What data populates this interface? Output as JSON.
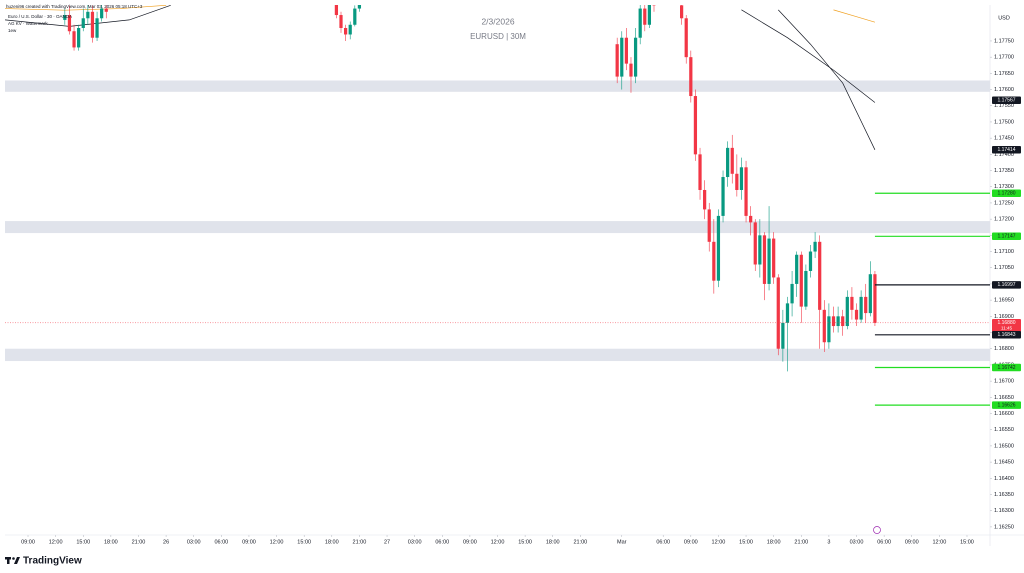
{
  "chart_data": {
    "type": "candlestick",
    "title": "EURUSD | 30M",
    "subtitle": "2/3/2026",
    "header": [
      "huzeni96 created with TradingView.com, Mar 03, 2026 05:18 UTC+3",
      "Euro / U.S. Dollar · 30 · OANDA",
      "AG KV · Watermark",
      "1ew"
    ],
    "currency": "USD",
    "brand": "TradingView",
    "up_color": "#089981",
    "down_color": "#f23645",
    "x": [
      8,
      9,
      10,
      11,
      12,
      13,
      14,
      15,
      16,
      17,
      67,
      68,
      69,
      70,
      71,
      72,
      128,
      129,
      130,
      131,
      132,
      133,
      134,
      135,
      136,
      142,
      143,
      144,
      145,
      146,
      147,
      148,
      149,
      150,
      151,
      152,
      153,
      154,
      155,
      156,
      157,
      158,
      159,
      160,
      161,
      162,
      163,
      164,
      165,
      166,
      167,
      168,
      169,
      170,
      171,
      172,
      173,
      174,
      175,
      176,
      177,
      178,
      179,
      180,
      181,
      182,
      183,
      184
    ],
    "open": [
      1.17815,
      1.1783,
      1.1778,
      1.1773,
      1.1779,
      1.1782,
      1.1784,
      1.1776,
      1.1782,
      1.1785,
      1.1788,
      1.1783,
      1.1779,
      1.1777,
      1.178,
      1.1785,
      1.1774,
      1.1764,
      1.1776,
      1.1768,
      1.1764,
      1.1776,
      1.1785,
      1.178,
      1.1788,
      1.1786,
      1.1782,
      1.177,
      1.1758,
      1.174,
      1.1729,
      1.1723,
      1.1713,
      1.1701,
      1.1721,
      1.1733,
      1.1742,
      1.1734,
      1.1729,
      1.1736,
      1.1721,
      1.1719,
      1.1706,
      1.1715,
      1.17,
      1.1714,
      1.1702,
      1.168,
      1.1688,
      1.1694,
      1.17,
      1.1709,
      1.1693,
      1.1704,
      1.171,
      1.1713,
      1.1692,
      1.1682,
      1.169,
      1.1687,
      1.169,
      1.1687,
      1.1696,
      1.1692,
      1.1689,
      1.1696,
      1.1691,
      1.1703
    ],
    "high": [
      1.1785,
      1.1786,
      1.178,
      1.178,
      1.1785,
      1.1787,
      1.1786,
      1.1784,
      1.1788,
      1.1788,
      1.1789,
      1.1784,
      1.178,
      1.1781,
      1.1786,
      1.17895,
      1.1776,
      1.1778,
      1.1779,
      1.177,
      1.1779,
      1.1787,
      1.1788,
      1.17895,
      1.179,
      1.1788,
      1.1783,
      1.1772,
      1.176,
      1.1742,
      1.1732,
      1.1725,
      1.172,
      1.1723,
      1.1735,
      1.1744,
      1.1746,
      1.174,
      1.1739,
      1.1738,
      1.1724,
      1.172,
      1.172,
      1.1716,
      1.1724,
      1.1716,
      1.1703,
      1.1692,
      1.1696,
      1.1704,
      1.171,
      1.171,
      1.1706,
      1.1712,
      1.1716,
      1.1715,
      1.1695,
      1.1694,
      1.1693,
      1.1693,
      1.1692,
      1.1698,
      1.1699,
      1.1694,
      1.1698,
      1.17,
      1.1707,
      1.1704
    ],
    "low": [
      1.178,
      1.1777,
      1.1772,
      1.1772,
      1.1778,
      1.178,
      1.17745,
      1.1775,
      1.1781,
      1.1782,
      1.1782,
      1.17775,
      1.1775,
      1.17755,
      1.17795,
      1.1784,
      1.1762,
      1.176,
      1.1766,
      1.1759,
      1.1762,
      1.1774,
      1.1778,
      1.1779,
      1.1784,
      1.178,
      1.1768,
      1.1756,
      1.1738,
      1.1726,
      1.172,
      1.171,
      1.1697,
      1.1699,
      1.1719,
      1.173,
      1.1731,
      1.1727,
      1.1726,
      1.1719,
      1.1715,
      1.1704,
      1.1702,
      1.1695,
      1.1698,
      1.17,
      1.1678,
      1.1676,
      1.1673,
      1.169,
      1.1696,
      1.1688,
      1.1692,
      1.1702,
      1.1708,
      1.168,
      1.1679,
      1.168,
      1.1685,
      1.1685,
      1.1684,
      1.1686,
      1.1689,
      1.1687,
      1.1688,
      1.1688,
      1.169,
      1.1687
    ],
    "close": [
      1.1783,
      1.1778,
      1.1773,
      1.1779,
      1.1782,
      1.1784,
      1.1776,
      1.1782,
      1.1785,
      1.1784,
      1.1783,
      1.1779,
      1.1777,
      1.178,
      1.1785,
      1.1788,
      1.1764,
      1.1776,
      1.1768,
      1.1764,
      1.1776,
      1.1785,
      1.178,
      1.1788,
      1.1786,
      1.1782,
      1.177,
      1.1758,
      1.174,
      1.1729,
      1.1723,
      1.1713,
      1.1701,
      1.1721,
      1.1733,
      1.1742,
      1.1734,
      1.1729,
      1.1736,
      1.1721,
      1.1719,
      1.1706,
      1.1715,
      1.17,
      1.1714,
      1.1702,
      1.168,
      1.1688,
      1.1694,
      1.17,
      1.1709,
      1.1693,
      1.1704,
      1.171,
      1.1713,
      1.1692,
      1.1682,
      1.169,
      1.1687,
      1.169,
      1.1687,
      1.1696,
      1.1692,
      1.1689,
      1.1696,
      1.1691,
      1.1703,
      1.1688
    ],
    "xlim": [
      -5,
      209
    ],
    "xticks": [
      {
        "value": 0,
        "label": "09:00"
      },
      {
        "value": 6,
        "label": "12:00"
      },
      {
        "value": 12,
        "label": "15:00"
      },
      {
        "value": 18,
        "label": "18:00"
      },
      {
        "value": 24,
        "label": "21:00"
      },
      {
        "value": 30,
        "label": "26"
      },
      {
        "value": 36,
        "label": "03:00"
      },
      {
        "value": 42,
        "label": "06:00"
      },
      {
        "value": 48,
        "label": "09:00"
      },
      {
        "value": 54,
        "label": "12:00"
      },
      {
        "value": 60,
        "label": "15:00"
      },
      {
        "value": 66,
        "label": "18:00"
      },
      {
        "value": 72,
        "label": "21:00"
      },
      {
        "value": 78,
        "label": "27"
      },
      {
        "value": 84,
        "label": "03:00"
      },
      {
        "value": 90,
        "label": "06:00"
      },
      {
        "value": 96,
        "label": "09:00"
      },
      {
        "value": 102,
        "label": "12:00"
      },
      {
        "value": 108,
        "label": "15:00"
      },
      {
        "value": 114,
        "label": "18:00"
      },
      {
        "value": 120,
        "label": "21:00"
      },
      {
        "value": 129,
        "label": "Mar"
      },
      {
        "value": 138,
        "label": "06:00"
      },
      {
        "value": 144,
        "label": "09:00"
      },
      {
        "value": 150,
        "label": "12:00"
      },
      {
        "value": 156,
        "label": "15:00"
      },
      {
        "value": 162,
        "label": "18:00"
      },
      {
        "value": 168,
        "label": "21:00"
      },
      {
        "value": 174,
        "label": "3"
      },
      {
        "value": 180,
        "label": "03:00"
      },
      {
        "value": 186,
        "label": "06:00"
      },
      {
        "value": 192,
        "label": "09:00"
      },
      {
        "value": 198,
        "label": "12:00"
      },
      {
        "value": 204,
        "label": "15:00"
      }
    ],
    "ylim": [
      1.16225,
      1.17861
    ],
    "yticks": [
      {
        "value": 1.1625,
        "label": "1.16250"
      },
      {
        "value": 1.163,
        "label": "1.16300"
      },
      {
        "value": 1.1635,
        "label": "1.16350"
      },
      {
        "value": 1.164,
        "label": "1.16400"
      },
      {
        "value": 1.1645,
        "label": "1.16450"
      },
      {
        "value": 1.165,
        "label": "1.16500"
      },
      {
        "value": 1.1655,
        "label": "1.16550"
      },
      {
        "value": 1.166,
        "label": "1.16600"
      },
      {
        "value": 1.1665,
        "label": "1.16650"
      },
      {
        "value": 1.167,
        "label": "1.16700"
      },
      {
        "value": 1.1675,
        "label": "1.16750"
      },
      {
        "value": 1.168,
        "label": "1.16800"
      },
      {
        "value": 1.1685,
        "label": "1.16850"
      },
      {
        "value": 1.169,
        "label": "1.16900"
      },
      {
        "value": 1.1695,
        "label": "1.16950"
      },
      {
        "value": 1.17,
        "label": "1.17000"
      },
      {
        "value": 1.1705,
        "label": "1.17050"
      },
      {
        "value": 1.171,
        "label": "1.17100"
      },
      {
        "value": 1.1715,
        "label": "1.17150"
      },
      {
        "value": 1.172,
        "label": "1.17200"
      },
      {
        "value": 1.1725,
        "label": "1.17250"
      },
      {
        "value": 1.173,
        "label": "1.17300"
      },
      {
        "value": 1.1735,
        "label": "1.17350"
      },
      {
        "value": 1.174,
        "label": "1.17400"
      },
      {
        "value": 1.1745,
        "label": "1.17450"
      },
      {
        "value": 1.175,
        "label": "1.17500"
      },
      {
        "value": 1.1755,
        "label": "1.17550"
      },
      {
        "value": 1.176,
        "label": "1.17600"
      },
      {
        "value": 1.1765,
        "label": "1.17650"
      },
      {
        "value": 1.177,
        "label": "1.17700"
      },
      {
        "value": 1.1775,
        "label": "1.17750"
      }
    ],
    "grid": false,
    "zone_color": "#e0e3eb",
    "zones": [
      {
        "from": 1.17593,
        "to": 1.17628
      },
      {
        "from": 1.17157,
        "to": 1.17194
      },
      {
        "from": 1.16762,
        "to": 1.168
      }
    ],
    "moving_averages": [
      {
        "color": "#f0a020",
        "x": [
          -5,
          8,
          20,
          30
        ],
        "values": [
          1.1785,
          1.17845,
          1.1785,
          1.1786
        ]
      },
      {
        "color": "#131722",
        "x": [
          -5,
          9,
          22,
          31
        ],
        "values": [
          1.17815,
          1.17795,
          1.17815,
          1.1786
        ]
      },
      {
        "color": "#f0a020",
        "x": [
          175,
          180,
          184
        ],
        "values": [
          1.17846,
          1.17825,
          1.17808
        ]
      },
      {
        "color": "#131722",
        "x": [
          155,
          165,
          175,
          184
        ],
        "values": [
          1.17846,
          1.1776,
          1.1766,
          1.1756
        ]
      },
      {
        "color": "#131722",
        "x": [
          163,
          170,
          177,
          184
        ],
        "values": [
          1.17846,
          1.1774,
          1.1762,
          1.17414
        ]
      }
    ],
    "price_tags": [
      {
        "value": 1.17567,
        "label": "1.17567",
        "color": "#131722",
        "text_color": "#ffffff",
        "line": "none"
      },
      {
        "value": 1.17414,
        "label": "1.17414",
        "color": "#131722",
        "text_color": "#ffffff",
        "line": "none"
      },
      {
        "value": 1.1728,
        "label": "1.17280",
        "color": "#22dd22",
        "text_color": "#131722",
        "line": "short"
      },
      {
        "value": 1.17147,
        "label": "1.17147",
        "color": "#22dd22",
        "text_color": "#131722",
        "line": "short"
      },
      {
        "value": 1.16997,
        "label": "1.16997",
        "color": "#131722",
        "text_color": "#ffffff",
        "line": "short"
      },
      {
        "value": 1.1688,
        "label": "1.16880",
        "countdown": "11:45",
        "color": "#f23645",
        "text_color": "#ffffff",
        "line": "dotted"
      },
      {
        "value": 1.16843,
        "label": "1.16843",
        "color": "#131722",
        "text_color": "#ffffff",
        "line": "short"
      },
      {
        "value": 1.16742,
        "label": "1.16742",
        "color": "#22dd22",
        "text_color": "#131722",
        "line": "short"
      },
      {
        "value": 1.16626,
        "label": "1.16626",
        "color": "#22dd22",
        "text_color": "#131722",
        "line": "short"
      }
    ]
  }
}
